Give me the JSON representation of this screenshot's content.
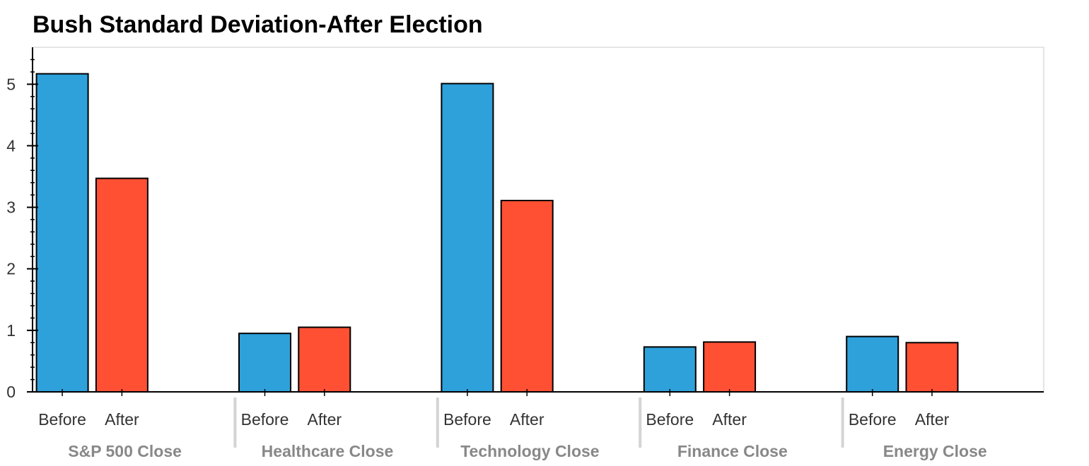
{
  "chart_data": {
    "type": "bar",
    "title": "Bush Standard Deviation-After Election",
    "xlabel": "",
    "ylabel": "",
    "ylim": [
      0,
      5.6
    ],
    "yticks": [
      "0",
      "1",
      "2",
      "3",
      "4",
      "5"
    ],
    "grid": false,
    "groups": [
      "S&P 500 Close",
      "Healthcare Close",
      "Technology Close",
      "Finance Close",
      "Energy Close"
    ],
    "subcategories": [
      "Before",
      "After"
    ],
    "series": [
      {
        "key": "Before",
        "color": "#2ea1db",
        "values": [
          5.17,
          0.95,
          5.01,
          0.73,
          0.9
        ]
      },
      {
        "key": "After",
        "color": "#ff5033",
        "values": [
          3.47,
          1.05,
          3.11,
          0.81,
          0.8
        ]
      }
    ],
    "legend": "none"
  }
}
